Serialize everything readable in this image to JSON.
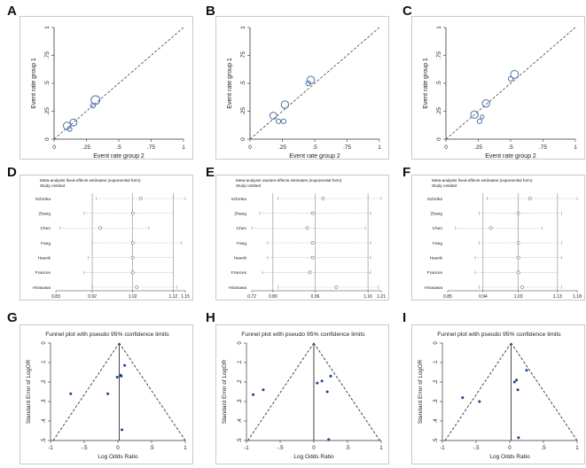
{
  "figure": {
    "labels": [
      "A",
      "B",
      "C",
      "D",
      "E",
      "F",
      "G",
      "H",
      "I"
    ]
  },
  "chart_data": [
    {
      "panel": "A",
      "type": "scatter",
      "xlabel": "Event rate group 2",
      "ylabel": "Event rate group 1",
      "xlim": [
        0,
        1
      ],
      "ylim": [
        0,
        1
      ],
      "ticks": [
        "0",
        ".25",
        ".5",
        ".75",
        "1"
      ],
      "reference_line": "y = x",
      "points": [
        {
          "x": 0.1,
          "y": 0.12,
          "weight": 1.6
        },
        {
          "x": 0.12,
          "y": 0.09,
          "weight": 1.0
        },
        {
          "x": 0.15,
          "y": 0.15,
          "weight": 1.5
        },
        {
          "x": 0.3,
          "y": 0.3,
          "weight": 1.0
        },
        {
          "x": 0.32,
          "y": 0.35,
          "weight": 1.9
        }
      ]
    },
    {
      "panel": "B",
      "type": "scatter",
      "xlabel": "Event rate group 2",
      "ylabel": "Event rate group 1",
      "xlim": [
        0,
        1
      ],
      "ylim": [
        0,
        1
      ],
      "ticks": [
        "0",
        ".25",
        ".5",
        ".75",
        "1"
      ],
      "reference_line": "y = x",
      "points": [
        {
          "x": 0.18,
          "y": 0.21,
          "weight": 1.5
        },
        {
          "x": 0.22,
          "y": 0.16,
          "weight": 1.0
        },
        {
          "x": 0.26,
          "y": 0.16,
          "weight": 1.0
        },
        {
          "x": 0.27,
          "y": 0.31,
          "weight": 1.6
        },
        {
          "x": 0.45,
          "y": 0.5,
          "weight": 1.0
        },
        {
          "x": 0.47,
          "y": 0.53,
          "weight": 1.6
        }
      ]
    },
    {
      "panel": "C",
      "type": "scatter",
      "xlabel": "Event rate group 2",
      "ylabel": "Event rate group 1",
      "xlim": [
        0,
        1
      ],
      "ylim": [
        0,
        1
      ],
      "ticks": [
        "0",
        ".25",
        ".5",
        ".75",
        "1"
      ],
      "reference_line": "y = x",
      "points": [
        {
          "x": 0.22,
          "y": 0.22,
          "weight": 1.6
        },
        {
          "x": 0.26,
          "y": 0.16,
          "weight": 1.0
        },
        {
          "x": 0.28,
          "y": 0.2,
          "weight": 0.8
        },
        {
          "x": 0.31,
          "y": 0.32,
          "weight": 1.6
        },
        {
          "x": 0.5,
          "y": 0.54,
          "weight": 1.0
        },
        {
          "x": 0.53,
          "y": 0.58,
          "weight": 1.7
        }
      ]
    },
    {
      "panel": "D",
      "type": "influence",
      "title": "Meta-analysis fixed-effects estimates (exponential form)",
      "subtitle": "Study omitted",
      "studies": [
        "Schmka",
        "Zhang",
        "Chen",
        "Fang",
        "Hasvik",
        "Frances",
        "Hirasawa"
      ],
      "xmin": 0.83,
      "xmax": 1.15,
      "ticks": [
        0.83,
        0.92,
        1.02,
        1.12,
        1.15
      ],
      "tick_labels": [
        "0.83",
        "0.92",
        "1.02",
        "1.12",
        "1.15"
      ],
      "reference_lines": [
        0.92,
        1.02,
        1.12
      ],
      "estimates": [
        1.04,
        1.02,
        0.94,
        1.02,
        1.02,
        1.02,
        1.03
      ],
      "lower": [
        0.93,
        0.9,
        0.84,
        0.92,
        0.91,
        0.9,
        0.92
      ],
      "upper": [
        1.15,
        1.12,
        1.06,
        1.14,
        1.12,
        1.12,
        1.13
      ]
    },
    {
      "panel": "E",
      "type": "influence",
      "title": "Meta-analysis random-effects estimates (exponential form)",
      "subtitle": "Study omitted",
      "studies": [
        "Schmka",
        "Zhang",
        "Chen",
        "Fang",
        "Hasvik",
        "Frances",
        "Hirasawa"
      ],
      "xmin": 0.72,
      "xmax": 1.21,
      "ticks": [
        0.72,
        0.8,
        0.96,
        1.16,
        1.21
      ],
      "tick_labels": [
        "0.72",
        "0.80",
        "0.96",
        "1.16",
        "1.21"
      ],
      "reference_lines": [
        0.8,
        0.96,
        1.16
      ],
      "estimates": [
        0.99,
        0.95,
        0.93,
        0.95,
        0.95,
        0.94,
        1.04
      ],
      "lower": [
        0.82,
        0.75,
        0.72,
        0.78,
        0.78,
        0.76,
        0.82
      ],
      "upper": [
        1.21,
        1.17,
        1.15,
        1.17,
        1.17,
        1.17,
        1.2
      ]
    },
    {
      "panel": "F",
      "type": "influence",
      "title": "Meta-analysis fixed-effects estimates (exponential form)",
      "subtitle": "Study omitted",
      "studies": [
        "Schmka",
        "Zhang",
        "Chen",
        "Fang",
        "Hasvik",
        "Frances",
        "Hirasawa"
      ],
      "xmin": 0.85,
      "xmax": 1.18,
      "ticks": [
        0.85,
        0.94,
        1.03,
        1.13,
        1.18
      ],
      "tick_labels": [
        "0.85",
        "0.94",
        "1.03",
        "1.13",
        "1.18"
      ],
      "reference_lines": [
        0.94,
        1.03,
        1.13
      ],
      "estimates": [
        1.06,
        1.03,
        0.96,
        1.03,
        1.03,
        1.03,
        1.04
      ],
      "lower": [
        0.95,
        0.93,
        0.87,
        0.93,
        0.92,
        0.92,
        0.93
      ],
      "upper": [
        1.18,
        1.14,
        1.09,
        1.14,
        1.14,
        1.13,
        1.14
      ]
    },
    {
      "panel": "G",
      "type": "funnel",
      "title": "Funnel plot with pseudo 95% confidence limits",
      "xlabel": "Log Odds Ratio",
      "ylabel": "Standard Error of LogOR",
      "xlim": [
        -1,
        1
      ],
      "ylim": [
        0,
        0.5
      ],
      "x_ticks": [
        -1,
        -0.5,
        0,
        0.5,
        1
      ],
      "x_tick_labels": [
        "-1",
        "-.5",
        "0",
        ".5",
        "1"
      ],
      "y_ticks": [
        0,
        0.1,
        0.2,
        0.3,
        0.4,
        0.5
      ],
      "y_tick_labels": [
        "0",
        ".1",
        ".2",
        ".3",
        ".4",
        ".5"
      ],
      "pooled": 0.02,
      "points": [
        {
          "x": -0.7,
          "y": 0.26
        },
        {
          "x": -0.15,
          "y": 0.26
        },
        {
          "x": -0.01,
          "y": 0.175
        },
        {
          "x": 0.04,
          "y": 0.165
        },
        {
          "x": 0.05,
          "y": 0.17
        },
        {
          "x": 0.1,
          "y": 0.115
        },
        {
          "x": 0.06,
          "y": 0.445
        }
      ]
    },
    {
      "panel": "H",
      "type": "funnel",
      "title": "Funnel plot with pseudo 95% confidence limits",
      "xlabel": "Log Odds Ratio",
      "ylabel": "Standard Error of LogOR",
      "xlim": [
        -1,
        1
      ],
      "ylim": [
        0,
        0.5
      ],
      "x_ticks": [
        -1,
        -0.5,
        0,
        0.5,
        1
      ],
      "x_tick_labels": [
        "-1",
        "-.5",
        "0",
        ".5",
        "1"
      ],
      "y_ticks": [
        0,
        0.1,
        0.2,
        0.3,
        0.4,
        0.5
      ],
      "y_tick_labels": [
        "0",
        ".1",
        ".2",
        ".3",
        ".4",
        ".5"
      ],
      "pooled": 0.0,
      "points": [
        {
          "x": -0.9,
          "y": 0.265
        },
        {
          "x": -0.75,
          "y": 0.24
        },
        {
          "x": 0.05,
          "y": 0.205
        },
        {
          "x": 0.12,
          "y": 0.195
        },
        {
          "x": 0.2,
          "y": 0.25
        },
        {
          "x": 0.25,
          "y": 0.17
        },
        {
          "x": 0.22,
          "y": 0.495
        }
      ]
    },
    {
      "panel": "I",
      "type": "funnel",
      "title": "Funnel plot with pseudo 95% confidence limits",
      "xlabel": "Log Odds Ratio",
      "ylabel": "Standard Error of LogOR",
      "xlim": [
        -1,
        1
      ],
      "ylim": [
        0,
        0.5
      ],
      "x_ticks": [
        -1,
        -0.5,
        0,
        0.5,
        1
      ],
      "x_tick_labels": [
        "-1",
        "-.5",
        "0",
        ".5",
        "1"
      ],
      "y_ticks": [
        0,
        0.1,
        0.2,
        0.3,
        0.4,
        0.5
      ],
      "y_tick_labels": [
        "0",
        ".1",
        ".2",
        ".3",
        ".4",
        ".5"
      ],
      "pooled": 0.02,
      "points": [
        {
          "x": -0.7,
          "y": 0.28
        },
        {
          "x": -0.45,
          "y": 0.3
        },
        {
          "x": 0.07,
          "y": 0.2
        },
        {
          "x": 0.1,
          "y": 0.19
        },
        {
          "x": 0.12,
          "y": 0.24
        },
        {
          "x": 0.25,
          "y": 0.14
        },
        {
          "x": 0.13,
          "y": 0.485
        }
      ]
    }
  ]
}
